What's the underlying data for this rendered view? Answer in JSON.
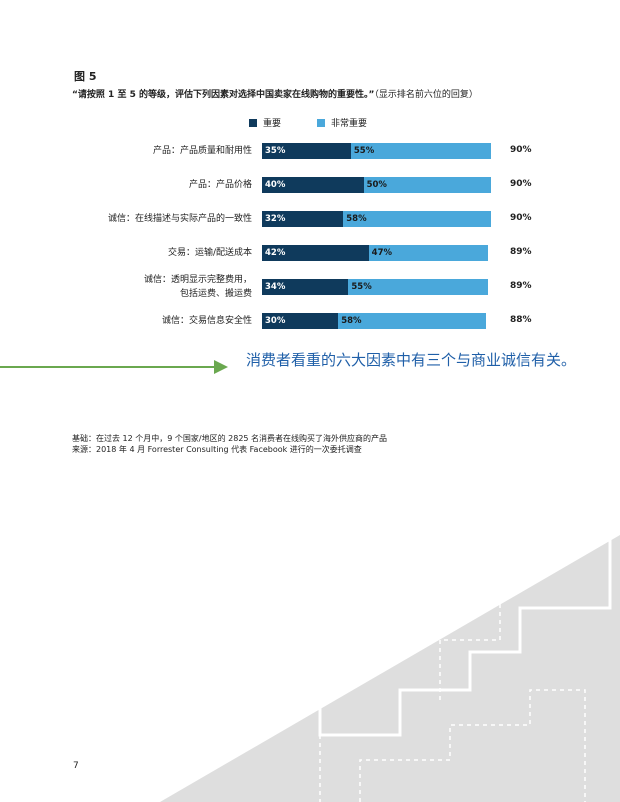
{
  "figure_label": "图 5",
  "question": {
    "main": "“请按照 1 至 5 的等级，评估下列因素对选择中国卖家在线购物的重要性。”",
    "note": "（显示排名前六位的回复）"
  },
  "colors": {
    "important": "#0f3a5c",
    "very_important": "#4aa8db",
    "arrow": "#6aa84f",
    "callout": "#1f5fa8",
    "decoration": "#d9d9d9"
  },
  "chart_data": {
    "type": "bar",
    "orientation": "horizontal",
    "stacked": true,
    "title": "",
    "legend_position": "top",
    "legend": [
      "重要",
      "非常重要"
    ],
    "categories": [
      [
        "产品：产品质量和耐用性"
      ],
      [
        "产品：产品价格"
      ],
      [
        "诚信：在线描述与实际产品的一致性"
      ],
      [
        "交易：运输/配送成本"
      ],
      [
        "诚信：透明显示完整费用，",
        "包括运费、搬运费"
      ],
      [
        "诚信：交易信息安全性"
      ]
    ],
    "series": [
      {
        "name": "重要",
        "values": [
          35,
          40,
          32,
          42,
          34,
          30
        ],
        "labels": [
          "35%",
          "40%",
          "32%",
          "42%",
          "34%",
          "30%"
        ]
      },
      {
        "name": "非常重要",
        "values": [
          55,
          50,
          58,
          47,
          55,
          58
        ],
        "labels": [
          "55%",
          "50%",
          "58%",
          "47%",
          "55%",
          "58%"
        ]
      }
    ],
    "totals": [
      "90%",
      "90%",
      "90%",
      "89%",
      "89%",
      "88%"
    ]
  },
  "callout": "消费者看重的六大因素中有三个与商业诚信有关。",
  "basis": "基础：在过去 12 个月中，9 个国家/地区的 2825 名消费者在线购买了海外供应商的产品",
  "source": "来源：2018 年 4 月 Forrester Consulting 代表 Facebook 进行的一次委托调查",
  "page_number": "7"
}
